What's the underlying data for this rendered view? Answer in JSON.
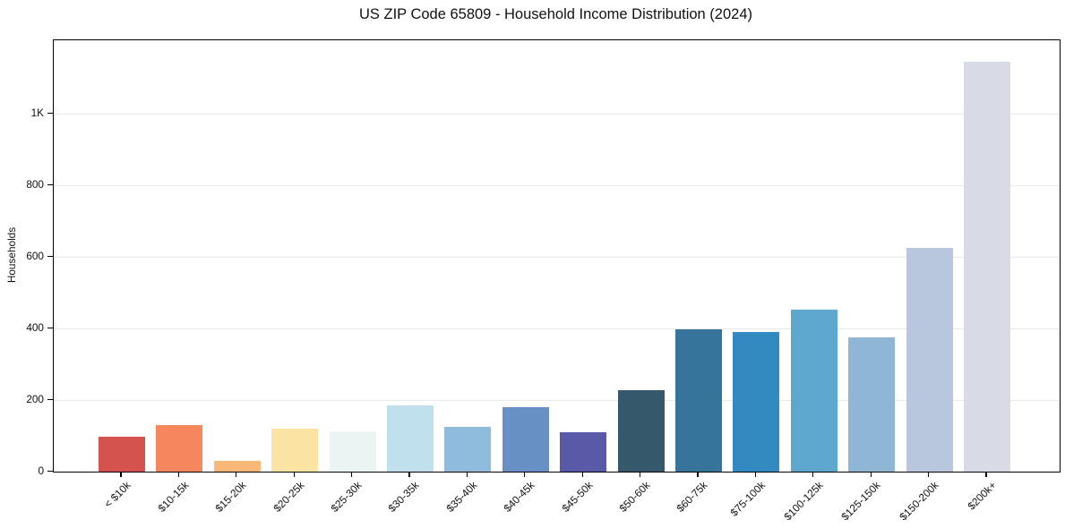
{
  "chart_data": {
    "type": "bar",
    "title": "US ZIP Code 65809 - Household Income Distribution (2024)",
    "xlabel": "",
    "ylabel": "Households",
    "categories": [
      "< $10k",
      "$10-15k",
      "$15-20k",
      "$20-25k",
      "$25-30k",
      "$30-35k",
      "$35-40k",
      "$40-45k",
      "$45-50k",
      "$50-60k",
      "$60-75k",
      "$75-100k",
      "$100-125k",
      "$125-150k",
      "$150-200k",
      "$200k+"
    ],
    "values": [
      97,
      131,
      29,
      120,
      113,
      184,
      126,
      180,
      110,
      228,
      397,
      391,
      453,
      376,
      624,
      1145
    ],
    "bar_colors": [
      "#d4534e",
      "#f5875f",
      "#f9b877",
      "#fbe3a3",
      "#eaf4f2",
      "#bfe0ec",
      "#8fbcdc",
      "#6790c4",
      "#5a59a8",
      "#35596b",
      "#36749c",
      "#338ac1",
      "#5ea8d0",
      "#90b6d6",
      "#b8c7de",
      "#d8dbe6"
    ],
    "ylim": [
      0,
      1205
    ],
    "ytick_values": [
      0,
      200,
      400,
      600,
      800,
      1000
    ],
    "ytick_labels": [
      "0",
      "200",
      "400",
      "600",
      "800",
      "1K"
    ],
    "grid": "horizontal-light-gray",
    "legend": "none",
    "x_tick_rotation_deg": 45,
    "plot_border": "black-rectangle"
  }
}
